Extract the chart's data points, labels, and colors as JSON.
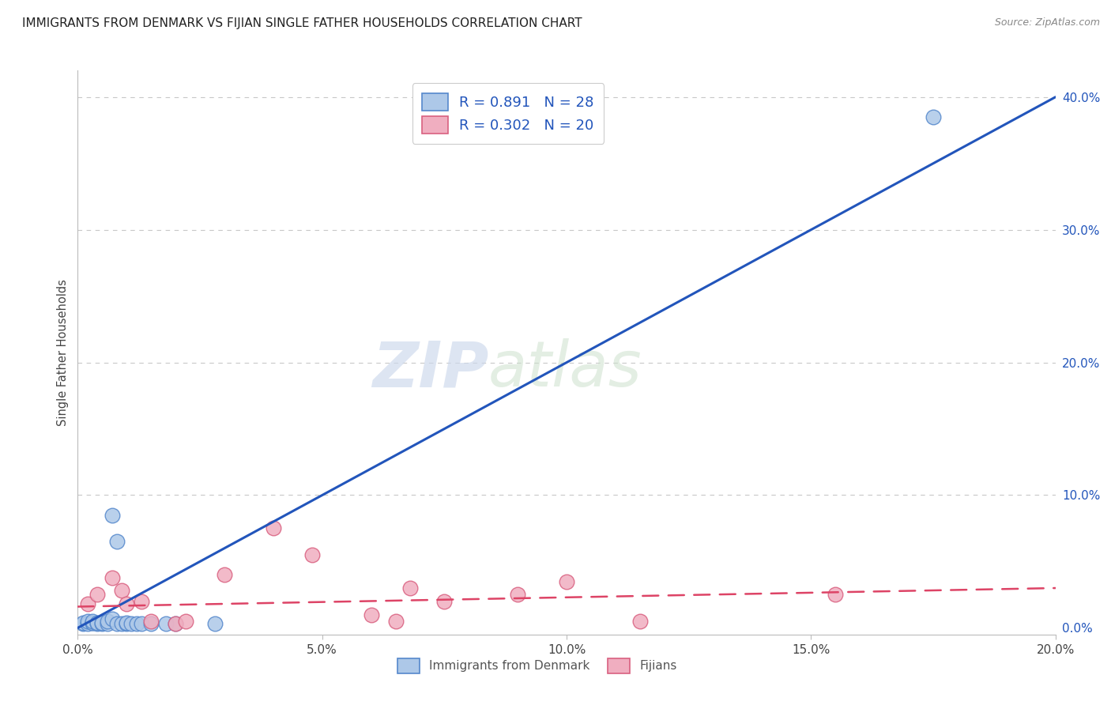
{
  "title": "IMMIGRANTS FROM DENMARK VS FIJIAN SINGLE FATHER HOUSEHOLDS CORRELATION CHART",
  "source": "Source: ZipAtlas.com",
  "ylabel": "Single Father Households",
  "xlim": [
    0.0,
    0.2
  ],
  "ylim": [
    -0.005,
    0.42
  ],
  "xticks": [
    0.0,
    0.05,
    0.1,
    0.15,
    0.2
  ],
  "xtick_labels": [
    "0.0%",
    "5.0%",
    "10.0%",
    "15.0%",
    "20.0%"
  ],
  "yticks_right": [
    0.0,
    0.1,
    0.2,
    0.3,
    0.4
  ],
  "ytick_labels_right": [
    "0.0%",
    "10.0%",
    "20.0%",
    "30.0%",
    "40.0%"
  ],
  "blue_color": "#adc8e8",
  "blue_edge": "#5588cc",
  "pink_color": "#f0aec0",
  "pink_edge": "#d96080",
  "trend_blue": "#2255bb",
  "trend_pink": "#dd4466",
  "legend_r_blue": "R = 0.891",
  "legend_n_blue": "N = 28",
  "legend_r_pink": "R = 0.302",
  "legend_n_pink": "N = 20",
  "legend_label_blue": "Immigrants from Denmark",
  "legend_label_pink": "Fijians",
  "watermark_zip": "ZIP",
  "watermark_atlas": "atlas",
  "blue_scatter_x": [
    0.001,
    0.001,
    0.002,
    0.002,
    0.003,
    0.003,
    0.003,
    0.004,
    0.004,
    0.005,
    0.005,
    0.006,
    0.006,
    0.007,
    0.007,
    0.008,
    0.008,
    0.009,
    0.01,
    0.01,
    0.011,
    0.012,
    0.013,
    0.015,
    0.018,
    0.02,
    0.028,
    0.175
  ],
  "blue_scatter_y": [
    0.003,
    0.004,
    0.003,
    0.005,
    0.004,
    0.004,
    0.005,
    0.003,
    0.004,
    0.003,
    0.004,
    0.003,
    0.005,
    0.007,
    0.085,
    0.065,
    0.003,
    0.003,
    0.003,
    0.004,
    0.003,
    0.003,
    0.003,
    0.003,
    0.003,
    0.003,
    0.003,
    0.385
  ],
  "pink_scatter_x": [
    0.002,
    0.004,
    0.007,
    0.009,
    0.01,
    0.013,
    0.015,
    0.02,
    0.022,
    0.03,
    0.04,
    0.048,
    0.06,
    0.065,
    0.068,
    0.075,
    0.09,
    0.1,
    0.115,
    0.155
  ],
  "pink_scatter_y": [
    0.018,
    0.025,
    0.038,
    0.028,
    0.018,
    0.02,
    0.005,
    0.003,
    0.005,
    0.04,
    0.075,
    0.055,
    0.01,
    0.005,
    0.03,
    0.02,
    0.025,
    0.035,
    0.005,
    0.025
  ],
  "blue_trendline_x": [
    0.0,
    0.2
  ],
  "blue_trendline_y": [
    0.0,
    0.4
  ],
  "pink_trendline_x": [
    0.0,
    0.2
  ],
  "pink_trendline_y": [
    0.016,
    0.03
  ],
  "background_color": "#ffffff",
  "grid_color": "#c8c8c8"
}
